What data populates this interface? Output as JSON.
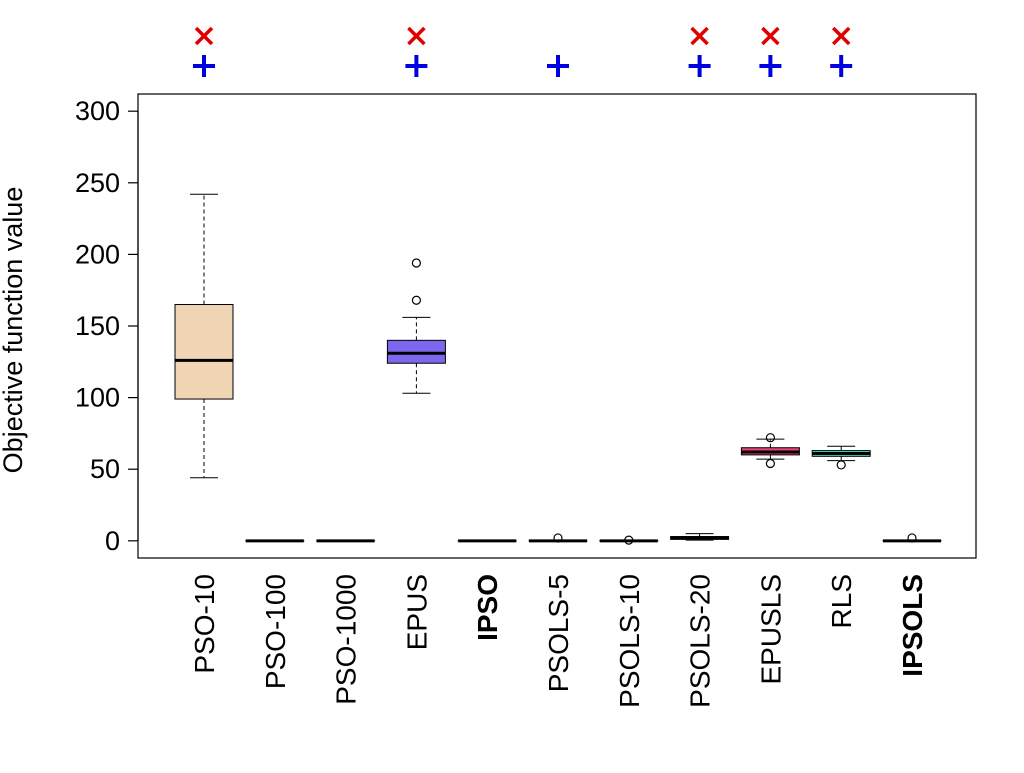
{
  "chart_data": {
    "type": "boxplot",
    "ylabel": "Objective function value",
    "ylim": [
      -12,
      312
    ],
    "yticks": [
      0,
      50,
      100,
      150,
      200,
      250,
      300
    ],
    "grid": false,
    "categories": [
      "PSO-10",
      "PSO-100",
      "PSO-1000",
      "EPUS",
      "IPSO",
      "PSOLS-5",
      "PSOLS-10",
      "PSOLS-20",
      "EPUSLS",
      "RLS",
      "IPSOLS"
    ],
    "bold_categories": [
      "IPSO",
      "IPSOLS"
    ],
    "boxes": [
      {
        "name": "PSO-10",
        "whisker_low": 44,
        "q1": 99,
        "median": 126,
        "q3": 165,
        "whisker_high": 242,
        "outliers": [],
        "fill": "#f0d5b5"
      },
      {
        "name": "PSO-100",
        "whisker_low": 0,
        "q1": 0,
        "median": 0,
        "q3": 0,
        "whisker_high": 0,
        "outliers": [],
        "fill": "#ffffff"
      },
      {
        "name": "PSO-1000",
        "whisker_low": 0,
        "q1": 0,
        "median": 0,
        "q3": 0,
        "whisker_high": 0,
        "outliers": [],
        "fill": "#ffffff"
      },
      {
        "name": "EPUS",
        "whisker_low": 103,
        "q1": 124,
        "median": 131,
        "q3": 140,
        "whisker_high": 156,
        "outliers": [
          168,
          194
        ],
        "fill": "#7b68ee"
      },
      {
        "name": "IPSO",
        "whisker_low": 0,
        "q1": 0,
        "median": 0,
        "q3": 0,
        "whisker_high": 0,
        "outliers": [],
        "fill": "#ffffff"
      },
      {
        "name": "PSOLS-5",
        "whisker_low": 0,
        "q1": 0,
        "median": 0,
        "q3": 0,
        "whisker_high": 0,
        "outliers": [
          2
        ],
        "fill": "#ffffff"
      },
      {
        "name": "PSOLS-10",
        "whisker_low": 0,
        "q1": 0,
        "median": 0,
        "q3": 0,
        "whisker_high": 0,
        "outliers": [
          0.5
        ],
        "fill": "#ffffff"
      },
      {
        "name": "PSOLS-20",
        "whisker_low": 0.5,
        "q1": 1,
        "median": 2,
        "q3": 3,
        "whisker_high": 5,
        "outliers": [],
        "fill": "#ffffff"
      },
      {
        "name": "EPUSLS",
        "whisker_low": 57,
        "q1": 60,
        "median": 62,
        "q3": 65,
        "whisker_high": 71,
        "outliers": [
          54,
          72
        ],
        "fill": "#e8407a"
      },
      {
        "name": "RLS",
        "whisker_low": 56,
        "q1": 59,
        "median": 61,
        "q3": 63,
        "whisker_high": 66,
        "outliers": [
          53
        ],
        "fill": "#40e0d0"
      },
      {
        "name": "IPSOLS",
        "whisker_low": 0,
        "q1": 0,
        "median": 0,
        "q3": 0,
        "whisker_high": 0,
        "outliers": [
          2
        ],
        "fill": "#ffffff"
      }
    ],
    "markers": {
      "cross": {
        "symbol": "×",
        "color": "#e00000",
        "categories": [
          "PSO-10",
          "EPUS",
          "PSOLS-20",
          "EPUSLS",
          "RLS"
        ]
      },
      "plus": {
        "symbol": "+",
        "color": "#0000e0",
        "categories": [
          "PSO-10",
          "EPUS",
          "PSOLS-5",
          "PSOLS-20",
          "EPUSLS",
          "RLS"
        ]
      }
    }
  }
}
